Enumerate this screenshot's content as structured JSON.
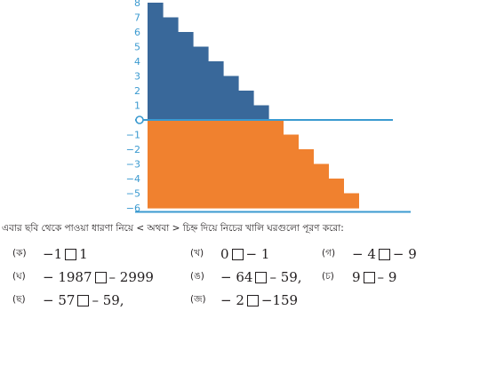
{
  "chart_data": {
    "type": "bar",
    "title": "",
    "xlabel": "",
    "ylabel": "",
    "ylim": [
      -6,
      8
    ],
    "y_ticks": [
      "8",
      "7",
      "6",
      "5",
      "4",
      "3",
      "2",
      "1",
      "0",
      "−1",
      "−2",
      "−3",
      "−4",
      "−5",
      "−6"
    ],
    "positive_series": {
      "color": "#39689a",
      "values": [
        8,
        7,
        6,
        5,
        4,
        3,
        2,
        1
      ]
    },
    "negative_series": {
      "color": "#f0812f",
      "values": [
        -1,
        -2,
        -3,
        -4,
        -5,
        -6
      ]
    },
    "axis_color": "#3b9ad0"
  },
  "instruction": "এবার ছবি থেকে পাওয়া ধারণা নিয়ে < অথবা > চিহ্ন দিয়ে নিচের খালি ঘরগুলো পূরণ করো:",
  "exercises": [
    {
      "marker": "(ক)",
      "left": "−1",
      "right": "1"
    },
    {
      "marker": "(খ)",
      "left": "0",
      "right": "− 1"
    },
    {
      "marker": "(গ)",
      "left": "− 4",
      "right": "− 9"
    },
    {
      "marker": "(ঘ)",
      "left": "− 1987",
      "right": "– 2999"
    },
    {
      "marker": "(ঙ)",
      "left": "− 64",
      "right": "– 59,"
    },
    {
      "marker": "(চ)",
      "left": "9",
      "right": "– 9"
    },
    {
      "marker": "(ছ)",
      "left": "− 57",
      "right": "– 59,"
    },
    {
      "marker": "(জ)",
      "left": "− 2",
      "right": "−159"
    }
  ]
}
